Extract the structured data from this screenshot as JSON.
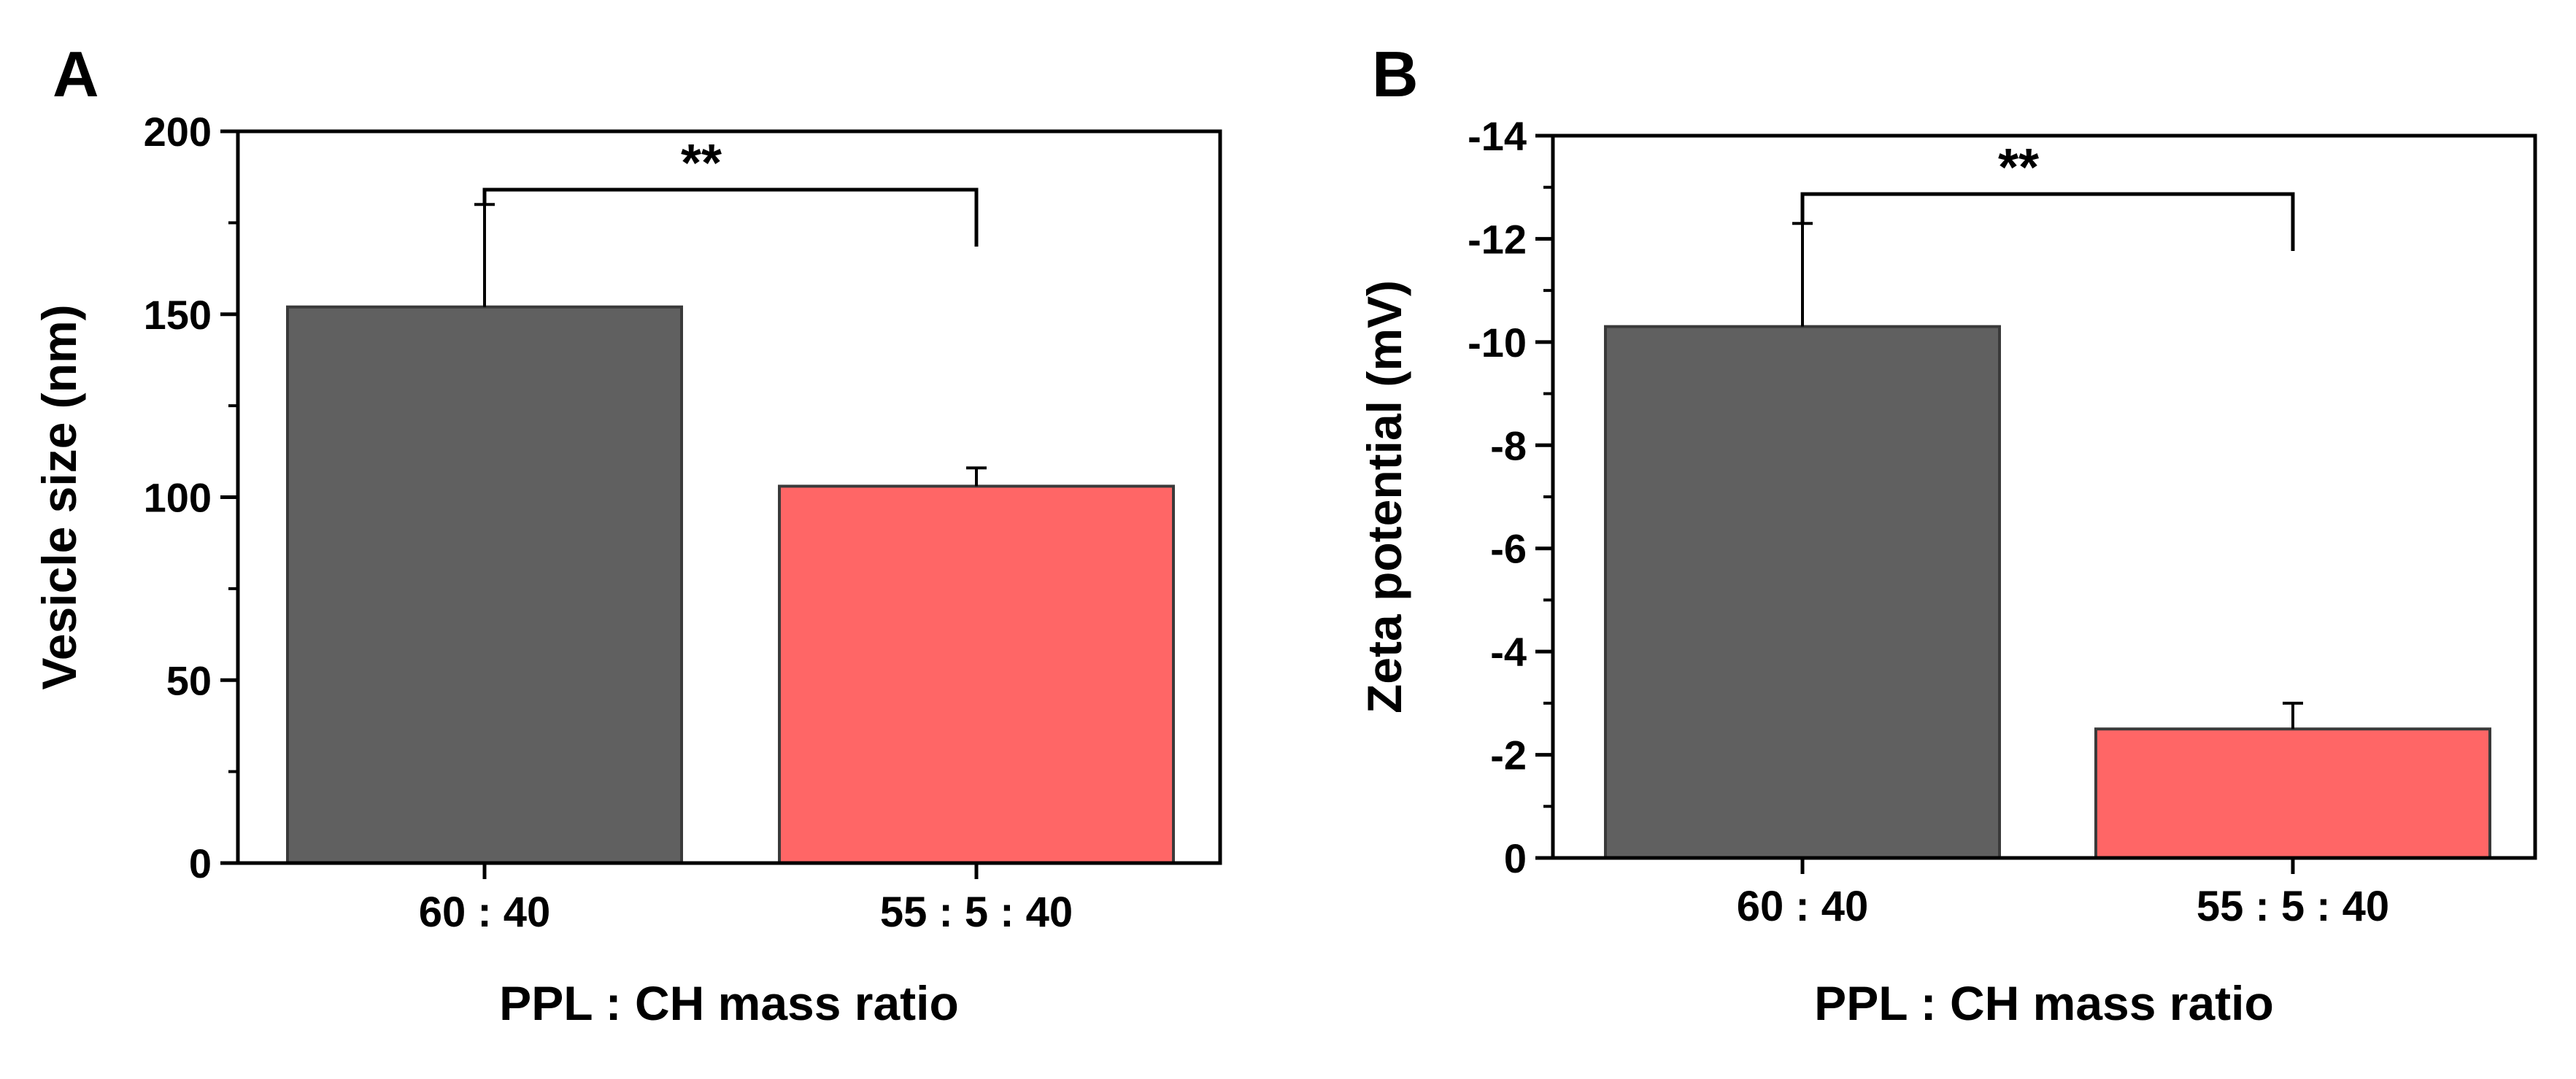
{
  "chart_data": [
    {
      "panel": "A",
      "type": "bar",
      "categories": [
        "60 : 40",
        "55 : 5 : 40"
      ],
      "values": [
        152,
        103
      ],
      "errors": [
        28,
        5
      ],
      "colors": [
        "#606060",
        "#ff6666"
      ],
      "xlabel": "PPL : CH mass ratio",
      "ylabel": "Vesicle size (nm)",
      "ylim": [
        0,
        200
      ],
      "yticks": [
        0,
        50,
        100,
        150,
        200
      ],
      "ytick_labels": [
        "0",
        "50",
        "100",
        "150",
        "200"
      ],
      "significance": "**"
    },
    {
      "panel": "B",
      "type": "bar",
      "categories": [
        "60 : 40",
        "55 : 5 : 40"
      ],
      "values": [
        -10.3,
        -2.5
      ],
      "errors": [
        2.0,
        0.5
      ],
      "colors": [
        "#606060",
        "#ff6666"
      ],
      "xlabel": "PPL : CH mass ratio",
      "ylabel": "Zeta potential (mV)",
      "ylim": [
        0,
        -14
      ],
      "yticks": [
        0,
        -2,
        -4,
        -6,
        -8,
        -10,
        -12,
        -14
      ],
      "ytick_labels": [
        "0",
        "-2",
        "-4",
        "-6",
        "-8",
        "-10",
        "-12",
        "-14"
      ],
      "significance": "**"
    }
  ]
}
